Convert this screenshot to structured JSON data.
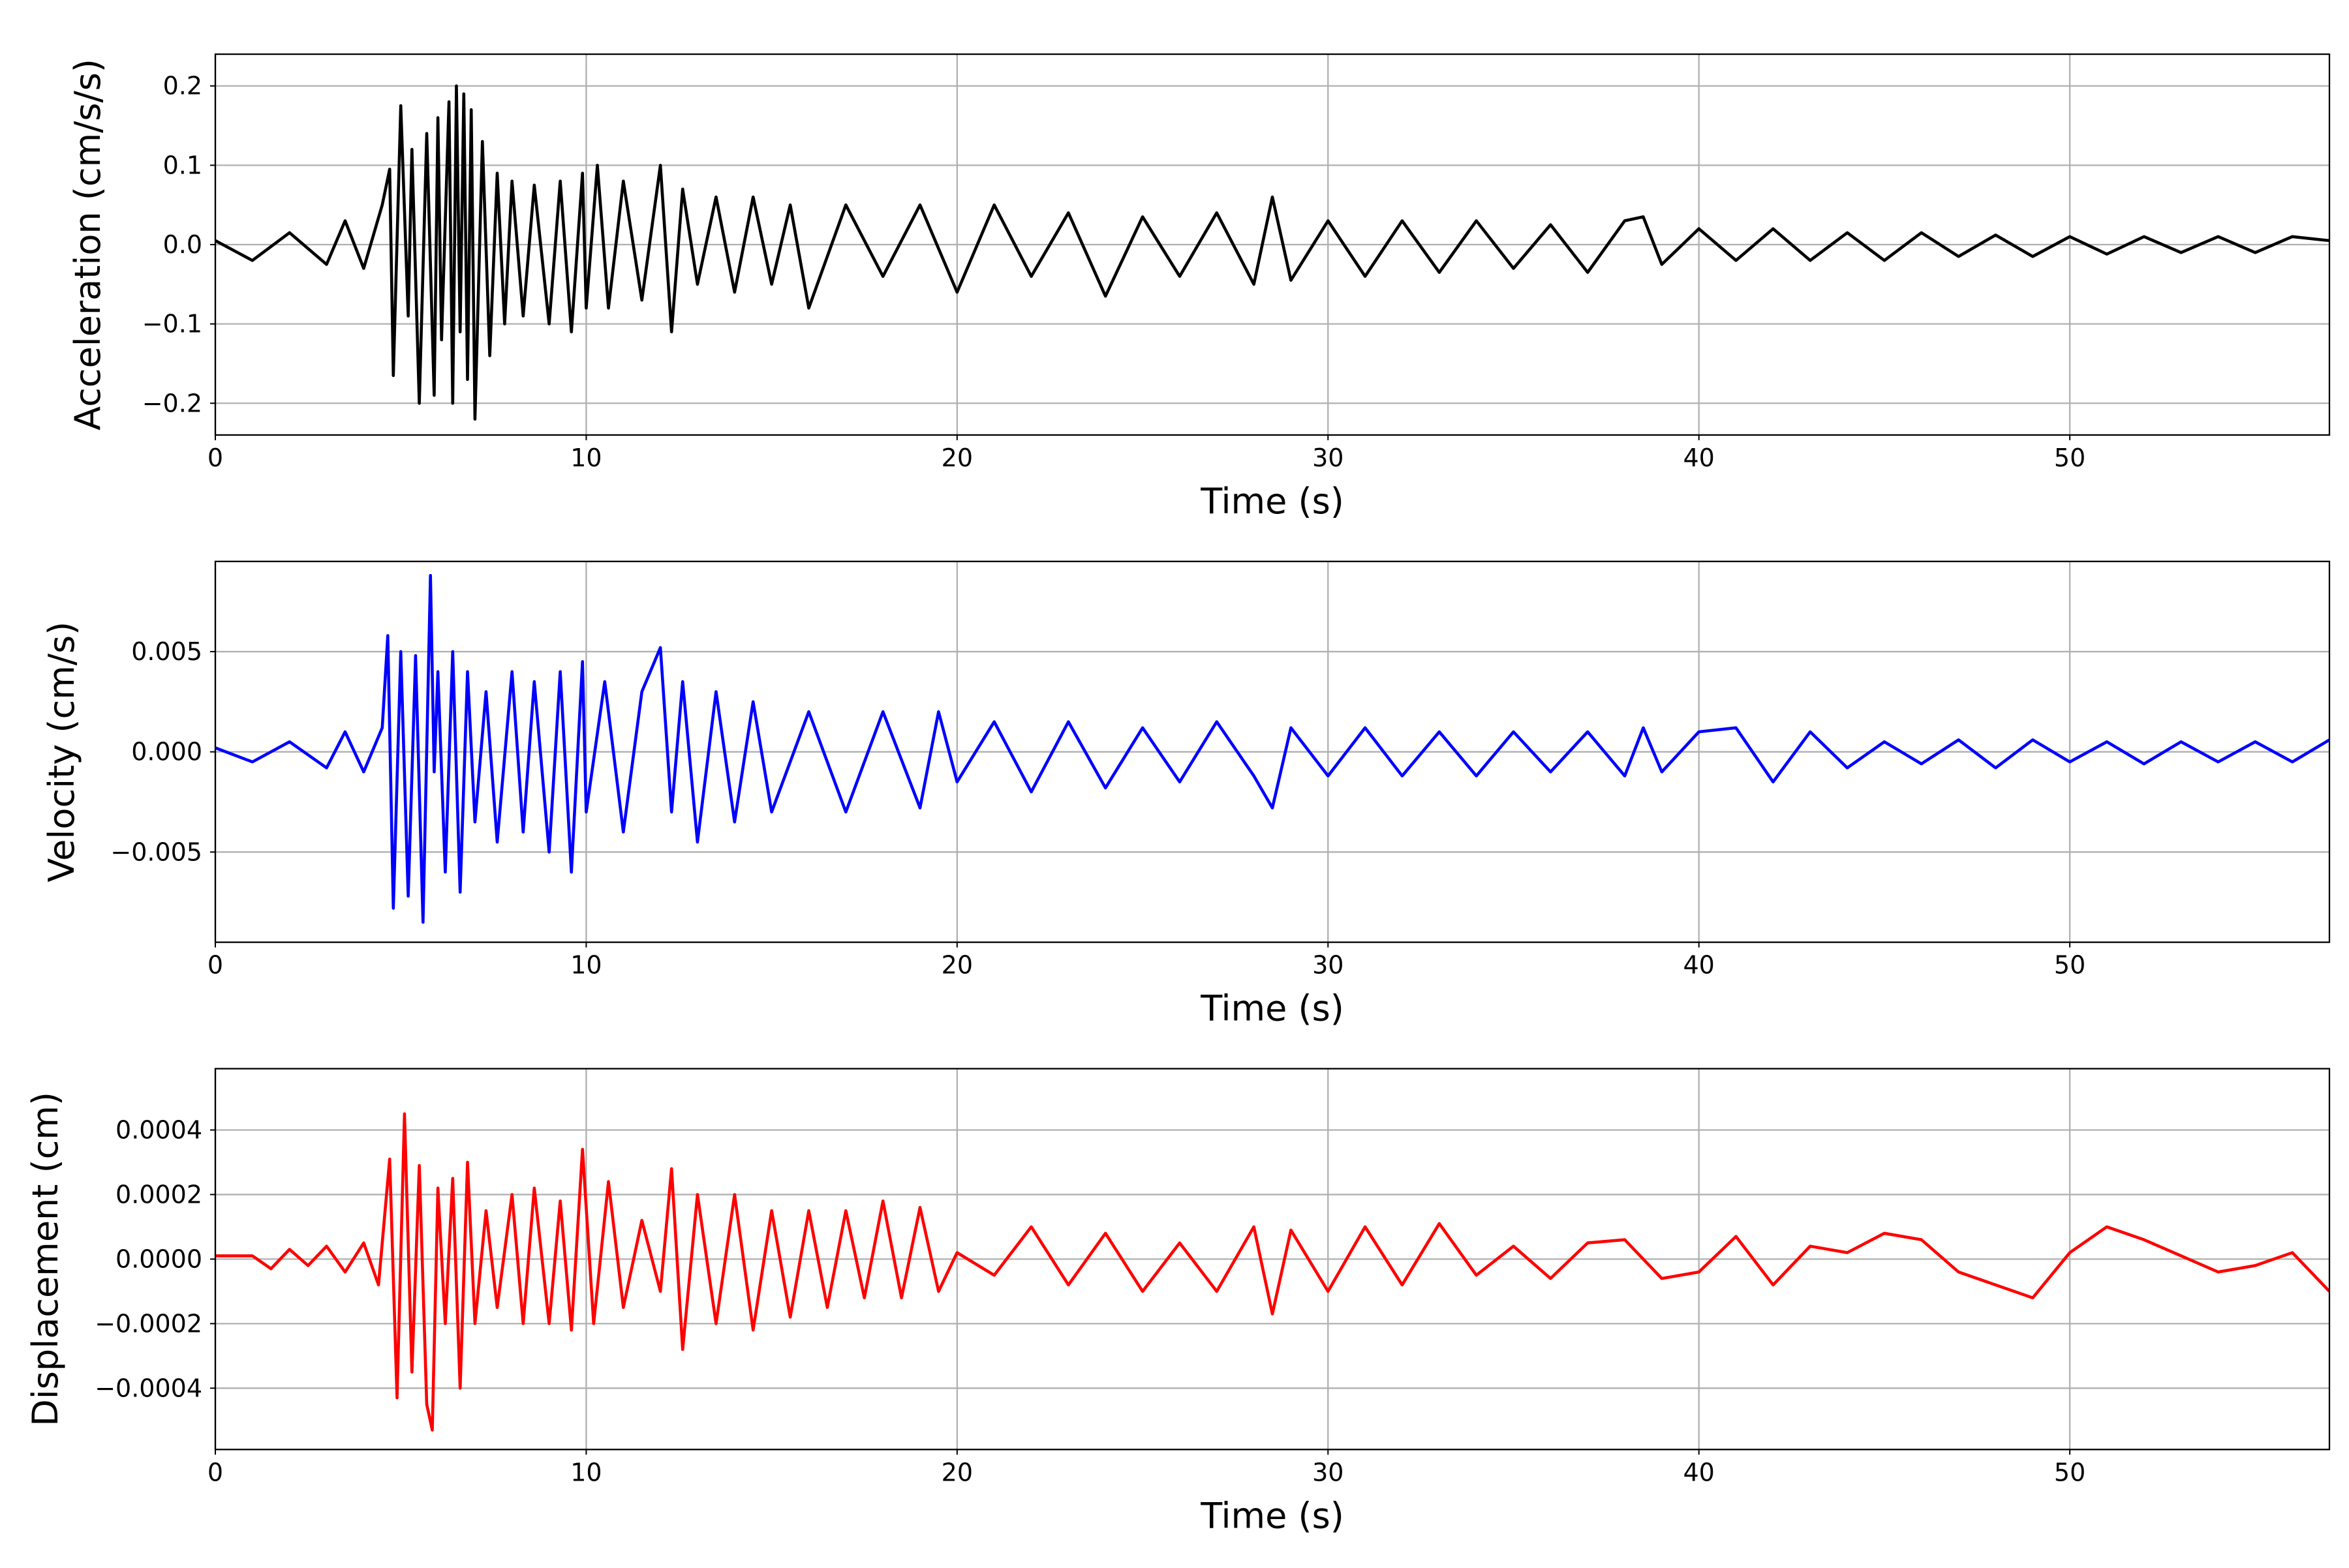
{
  "chart_data": [
    {
      "type": "line",
      "title": "",
      "xlabel": "Time (s)",
      "ylabel": "Acceleration (cm/s/s)",
      "xlim": [
        0,
        57
      ],
      "ylim": [
        -0.24,
        0.24
      ],
      "xticks": [
        "0",
        "10",
        "20",
        "30",
        "40",
        "50"
      ],
      "yticks": [
        "−0.2",
        "−0.1",
        "0.0",
        "0.1",
        "0.2"
      ],
      "xtick_values": [
        0,
        10,
        20,
        30,
        40,
        50
      ],
      "ytick_values": [
        -0.2,
        -0.1,
        0.0,
        0.1,
        0.2
      ],
      "grid": true,
      "color": "#000000",
      "series": [
        {
          "x": [
            0,
            1,
            2,
            3,
            3.5,
            4,
            4.5,
            4.7,
            4.8,
            5.0,
            5.2,
            5.3,
            5.5,
            5.7,
            5.9,
            6.0,
            6.1,
            6.3,
            6.4,
            6.5,
            6.6,
            6.7,
            6.8,
            6.9,
            7.0,
            7.2,
            7.4,
            7.6,
            7.8,
            8,
            8.3,
            8.6,
            9,
            9.3,
            9.6,
            9.9,
            10,
            10.3,
            10.6,
            11,
            11.5,
            12,
            12.3,
            12.6,
            13,
            13.5,
            14,
            14.5,
            15,
            15.5,
            16,
            17,
            18,
            19,
            20,
            21,
            22,
            23,
            24,
            25,
            26,
            27,
            28,
            28.5,
            29,
            30,
            31,
            32,
            33,
            34,
            35,
            36,
            37,
            38,
            38.5,
            39,
            40,
            41,
            42,
            43,
            44,
            45,
            46,
            47,
            48,
            49,
            50,
            51,
            52,
            53,
            54,
            55,
            56,
            57
          ],
          "y": [
            0.005,
            -0.02,
            0.015,
            -0.025,
            0.03,
            -0.03,
            0.05,
            0.095,
            -0.165,
            0.175,
            -0.09,
            0.12,
            -0.2,
            0.14,
            -0.19,
            0.16,
            -0.12,
            0.18,
            -0.2,
            0.2,
            -0.11,
            0.19,
            -0.17,
            0.17,
            -0.22,
            0.13,
            -0.14,
            0.09,
            -0.1,
            0.08,
            -0.09,
            0.075,
            -0.1,
            0.08,
            -0.11,
            0.09,
            -0.08,
            0.1,
            -0.08,
            0.08,
            -0.07,
            0.1,
            -0.11,
            0.07,
            -0.05,
            0.06,
            -0.06,
            0.06,
            -0.05,
            0.05,
            -0.08,
            0.05,
            -0.04,
            0.05,
            -0.06,
            0.05,
            -0.04,
            0.04,
            -0.065,
            0.035,
            -0.04,
            0.04,
            -0.05,
            0.06,
            -0.045,
            0.03,
            -0.04,
            0.03,
            -0.035,
            0.03,
            -0.03,
            0.025,
            -0.035,
            0.03,
            0.035,
            -0.025,
            0.02,
            -0.02,
            0.02,
            -0.02,
            0.015,
            -0.02,
            0.015,
            -0.015,
            0.012,
            -0.015,
            0.01,
            -0.012,
            0.01,
            -0.01,
            0.01,
            -0.01,
            0.01,
            0.005
          ]
        }
      ]
    },
    {
      "type": "line",
      "title": "",
      "xlabel": "Time (s)",
      "ylabel": "Velocity (cm/s)",
      "xlim": [
        0,
        57
      ],
      "ylim": [
        -0.0095,
        0.0095
      ],
      "xticks": [
        "0",
        "10",
        "20",
        "30",
        "40",
        "50"
      ],
      "yticks": [
        "−0.005",
        "0.000",
        "0.005"
      ],
      "xtick_values": [
        0,
        10,
        20,
        30,
        40,
        50
      ],
      "ytick_values": [
        -0.005,
        0.0,
        0.005
      ],
      "grid": true,
      "color": "#0000ff",
      "series": [
        {
          "x": [
            0,
            1,
            2,
            3,
            3.5,
            4,
            4.5,
            4.65,
            4.8,
            5.0,
            5.2,
            5.4,
            5.6,
            5.8,
            5.9,
            6.0,
            6.2,
            6.4,
            6.6,
            6.8,
            7.0,
            7.3,
            7.6,
            8,
            8.3,
            8.6,
            9,
            9.3,
            9.6,
            9.9,
            10,
            10.5,
            11,
            11.5,
            12,
            12.3,
            12.6,
            13,
            13.5,
            14,
            14.5,
            15,
            16,
            17,
            18,
            19,
            19.5,
            20,
            21,
            22,
            23,
            24,
            25,
            26,
            27,
            28,
            28.5,
            29,
            30,
            31,
            32,
            33,
            34,
            35,
            36,
            37,
            38,
            38.5,
            39,
            40,
            41,
            42,
            43,
            44,
            45,
            46,
            47,
            48,
            49,
            50,
            51,
            52,
            53,
            54,
            55,
            56,
            57
          ],
          "y": [
            0.0002,
            -0.0005,
            0.0005,
            -0.0008,
            0.001,
            -0.001,
            0.0012,
            0.0058,
            -0.0078,
            0.005,
            -0.0072,
            0.0048,
            -0.0085,
            0.0088,
            -0.001,
            0.004,
            -0.006,
            0.005,
            -0.007,
            0.004,
            -0.0035,
            0.003,
            -0.0045,
            0.004,
            -0.004,
            0.0035,
            -0.005,
            0.004,
            -0.006,
            0.0045,
            -0.003,
            0.0035,
            -0.004,
            0.003,
            0.0052,
            -0.003,
            0.0035,
            -0.0045,
            0.003,
            -0.0035,
            0.0025,
            -0.003,
            0.002,
            -0.003,
            0.002,
            -0.0028,
            0.002,
            -0.0015,
            0.0015,
            -0.002,
            0.0015,
            -0.0018,
            0.0012,
            -0.0015,
            0.0015,
            -0.0012,
            -0.0028,
            0.0012,
            -0.0012,
            0.0012,
            -0.0012,
            0.001,
            -0.0012,
            0.001,
            -0.001,
            0.001,
            -0.0012,
            0.0012,
            -0.001,
            0.001,
            0.0012,
            -0.0015,
            0.001,
            -0.0008,
            0.0005,
            -0.0006,
            0.0006,
            -0.0008,
            0.0006,
            -0.0005,
            0.0005,
            -0.0006,
            0.0005,
            -0.0005,
            0.0005,
            -0.0005,
            0.0006
          ]
        }
      ]
    },
    {
      "type": "line",
      "title": "",
      "xlabel": "Time (s)",
      "ylabel": "Displacement (cm)",
      "xlim": [
        0,
        57
      ],
      "ylim": [
        -0.00059,
        0.00059
      ],
      "xticks": [
        "0",
        "10",
        "20",
        "30",
        "40",
        "50"
      ],
      "yticks": [
        "−0.0004",
        "−0.0002",
        "0.0000",
        "0.0002",
        "0.0004"
      ],
      "xtick_values": [
        0,
        10,
        20,
        30,
        40,
        50
      ],
      "ytick_values": [
        -0.0004,
        -0.0002,
        0.0,
        0.0002,
        0.0004
      ],
      "grid": true,
      "color": "#ff0000",
      "series": [
        {
          "x": [
            0,
            0.5,
            1,
            1.5,
            2,
            2.5,
            3,
            3.5,
            4,
            4.4,
            4.7,
            4.9,
            5.1,
            5.3,
            5.5,
            5.7,
            5.85,
            6.0,
            6.2,
            6.4,
            6.6,
            6.8,
            7.0,
            7.3,
            7.6,
            8,
            8.3,
            8.6,
            9,
            9.3,
            9.6,
            9.9,
            10.2,
            10.6,
            11,
            11.5,
            12,
            12.3,
            12.6,
            13,
            13.5,
            14,
            14.5,
            15,
            15.5,
            16,
            16.5,
            17,
            17.5,
            18,
            18.5,
            19,
            19.5,
            20,
            21,
            22,
            23,
            24,
            25,
            26,
            27,
            28,
            28.5,
            29,
            30,
            31,
            32,
            33,
            34,
            35,
            36,
            37,
            38,
            39,
            40,
            41,
            42,
            43,
            44,
            45,
            46,
            47,
            48,
            49,
            50,
            51,
            52,
            53,
            54,
            55,
            56,
            57
          ],
          "y": [
            1e-05,
            1e-05,
            1e-05,
            -3e-05,
            3e-05,
            -2e-05,
            4e-05,
            -4e-05,
            5e-05,
            -8e-05,
            0.00031,
            -0.00043,
            0.00045,
            -0.00035,
            0.00029,
            -0.00045,
            -0.00053,
            0.00022,
            -0.0002,
            0.00025,
            -0.0004,
            0.0003,
            -0.0002,
            0.00015,
            -0.00015,
            0.0002,
            -0.0002,
            0.00022,
            -0.0002,
            0.00018,
            -0.00022,
            0.00034,
            -0.0002,
            0.00024,
            -0.00015,
            0.00012,
            -0.0001,
            0.00028,
            -0.00028,
            0.0002,
            -0.0002,
            0.0002,
            -0.00022,
            0.00015,
            -0.00018,
            0.00015,
            -0.00015,
            0.00015,
            -0.00012,
            0.00018,
            -0.00012,
            0.00016,
            -0.0001,
            2e-05,
            -5e-05,
            0.0001,
            -8e-05,
            8e-05,
            -0.0001,
            5e-05,
            -0.0001,
            0.0001,
            -0.00017,
            9e-05,
            -0.0001,
            0.0001,
            -8e-05,
            0.00011,
            -5e-05,
            4e-05,
            -6e-05,
            5e-05,
            6e-05,
            -6e-05,
            -4e-05,
            7e-05,
            -8e-05,
            4e-05,
            2e-05,
            8e-05,
            6e-05,
            -4e-05,
            -8e-05,
            -0.00012,
            2e-05,
            0.0001,
            6e-05,
            1e-05,
            -4e-05,
            -2e-05,
            2e-05,
            -0.0001
          ]
        }
      ]
    }
  ]
}
